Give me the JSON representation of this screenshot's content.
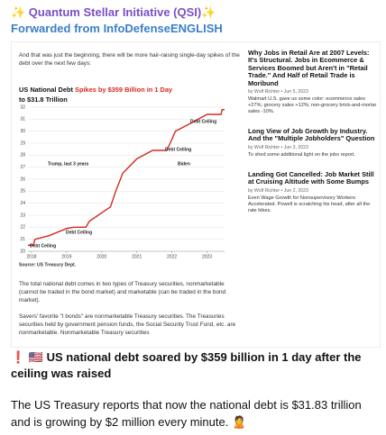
{
  "header": {
    "title": "✨ Quantum Stellar Initiative (QSI)✨",
    "forwarded": "Forwarded from InfoDefenseENGLISH"
  },
  "article": {
    "intro": "And that was just the beginning, there will be more hair-raising single-day spikes of the debt over the next few days:",
    "paragraphs": [
      "The total national debt comes in two types of Treasury securities, nonmarketable (cannot be traded in the bond market) and marketable (can be traded in the bond market).",
      "Savers' favorite \"I bonds\" are nonmarketable Treasury securities. The Treasuries securities held by government pension funds, the Social Security Trust Fund, etc. are nonmarketable. Nonmarketable Treasury securities"
    ]
  },
  "chart_data": {
    "type": "line",
    "title": "US National Debt",
    "title_highlight": "Spikes by $359 Billion in 1 Day",
    "subtitle": "to $31.8 Trillion",
    "source": "Source: US Treasury Dept.",
    "x": [
      2017.9,
      2018.05,
      2018.1,
      2018.5,
      2019.0,
      2019.2,
      2019.55,
      2019.65,
      2020.0,
      2020.25,
      2020.4,
      2020.6,
      2021.0,
      2021.45,
      2021.85,
      2021.95,
      2022.1,
      2022.5,
      2023.0,
      2023.4,
      2023.43,
      2023.5
    ],
    "series": [
      {
        "name": "US National Debt",
        "color": "#d42a1f",
        "values": [
          20.5,
          20.5,
          21.0,
          21.3,
          21.9,
          22.0,
          22.0,
          22.5,
          23.2,
          23.7,
          25.0,
          26.5,
          27.7,
          28.4,
          28.4,
          29.0,
          30.0,
          30.6,
          31.4,
          31.4,
          31.8,
          31.8
        ]
      }
    ],
    "xlim": [
      2017.9,
      2023.5
    ],
    "xticks": [
      2018,
      2019,
      2020,
      2021,
      2022,
      2023
    ],
    "ylim": [
      20,
      32
    ],
    "yticks": [
      20,
      21,
      22,
      23,
      24,
      25,
      26,
      27,
      28,
      29,
      30,
      31,
      32
    ],
    "grid": true,
    "annotations": [
      "Debt Ceiling",
      "Debt Ceiling",
      "Trump, last 3 years",
      "Debt Ceiling",
      "Biden",
      "Debt Ceiling"
    ]
  },
  "sidebar": [
    {
      "headline": "Why Jobs in Retail Are at 2007 Levels: It's Structural. Jobs in Ecommerce & Services Boomed but Aren't in \"Retail Trade.\" And Half of Retail Trade is Moribund",
      "byline": "by Wolf Richter • Jun 5, 2023",
      "snippet": "Walmart U.S. gave us some color: ecommerce sales +27%; grocery sales +12%; non-grocery brick-and-mortar sales -10%."
    },
    {
      "headline": "Long View of Job Growth by Industry. And the \"Multiple Jobholders\" Question",
      "byline": "by Wolf Richter • Jun 3, 2023",
      "snippet": "To shed some additional light on the jobs report."
    },
    {
      "headline": "Landing Got Cancelled: Job Market Still at Cruising Altitude with Some Bumps",
      "byline": "by Wolf Richter • Jun 2, 2023",
      "snippet": "Even Wage Growth for Nonsupervisory Workers Accelerated. Powell is scratching his head, after all the rate hikes."
    }
  ],
  "post": {
    "headline": "❗️ 🇺🇸 US national debt soared by $359 billion in 1 day after the ceiling was raised",
    "body": "The US Treasury reports that now the national debt is $31.83 trillion and is growing by $2 million every minute. 🙎"
  }
}
